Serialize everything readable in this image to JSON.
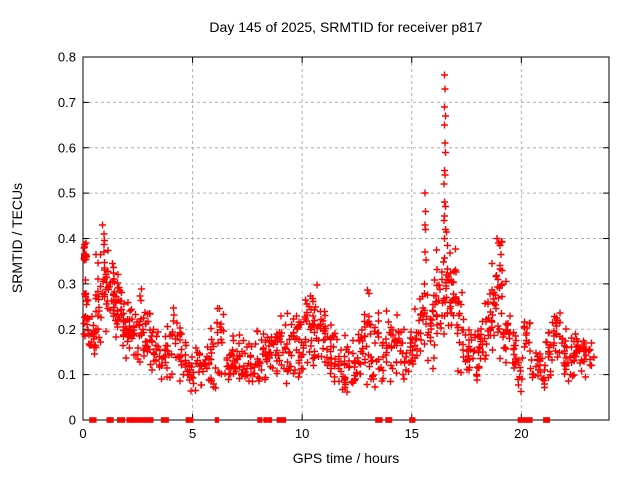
{
  "chart_data": {
    "type": "scatter",
    "title": "Day 145 of 2025, SRMTID for receiver p817",
    "xlabel": "GPS time / hours",
    "ylabel": "SRMTID / TECUs",
    "xlim": [
      0,
      24
    ],
    "ylim": [
      0,
      0.8
    ],
    "x_ticks": [
      0,
      5,
      10,
      15,
      20
    ],
    "x_tick_labels": [
      "0",
      "5",
      "10",
      "15",
      "20"
    ],
    "y_ticks": [
      0,
      0.1,
      0.2,
      0.3,
      0.4,
      0.5,
      0.6,
      0.7,
      0.8
    ],
    "y_tick_labels": [
      "0",
      "0.1",
      "0.2",
      "0.3",
      "0.4",
      "0.5",
      "0.6",
      "0.7",
      "0.8"
    ],
    "grid": true,
    "legend": "none",
    "marker": "plus",
    "colors": {
      "points": "#ff0000",
      "grid": "#b0b0b0",
      "axis": "#000000",
      "background": "#ffffff",
      "text": "#000000"
    },
    "note": "Dense scatter (~1100 pts) read from pixels as envelope bands [x_start,x_end,y_min,y_max,count]; distinct high outliers listed explicitly; zero_runs are x-ranges of points plotted at y=0 on the axis.",
    "density_bands": [
      [
        0.0,
        0.25,
        0.14,
        0.31,
        18
      ],
      [
        0.0,
        0.2,
        0.33,
        0.4,
        14
      ],
      [
        0.25,
        0.55,
        0.1,
        0.28,
        16
      ],
      [
        0.55,
        0.85,
        0.15,
        0.38,
        22
      ],
      [
        0.85,
        1.1,
        0.17,
        0.43,
        20
      ],
      [
        1.1,
        1.45,
        0.2,
        0.38,
        26
      ],
      [
        1.45,
        1.8,
        0.15,
        0.33,
        24
      ],
      [
        1.8,
        2.1,
        0.13,
        0.3,
        22
      ],
      [
        2.1,
        2.45,
        0.12,
        0.27,
        20
      ],
      [
        2.45,
        2.8,
        0.1,
        0.3,
        20
      ],
      [
        2.8,
        3.1,
        0.1,
        0.29,
        18
      ],
      [
        3.1,
        3.45,
        0.09,
        0.22,
        16
      ],
      [
        3.45,
        3.8,
        0.08,
        0.2,
        16
      ],
      [
        3.8,
        4.1,
        0.08,
        0.22,
        14
      ],
      [
        4.1,
        4.45,
        0.08,
        0.28,
        16
      ],
      [
        4.45,
        4.8,
        0.07,
        0.2,
        14
      ],
      [
        4.8,
        5.1,
        0.05,
        0.17,
        12
      ],
      [
        5.1,
        5.45,
        0.05,
        0.18,
        14
      ],
      [
        5.45,
        5.8,
        0.06,
        0.2,
        14
      ],
      [
        5.8,
        6.1,
        0.05,
        0.22,
        14
      ],
      [
        6.1,
        6.45,
        0.06,
        0.28,
        16
      ],
      [
        6.45,
        6.8,
        0.06,
        0.18,
        14
      ],
      [
        6.8,
        7.1,
        0.07,
        0.2,
        14
      ],
      [
        7.1,
        7.45,
        0.07,
        0.2,
        16
      ],
      [
        7.45,
        7.8,
        0.05,
        0.18,
        14
      ],
      [
        7.8,
        8.1,
        0.06,
        0.2,
        14
      ],
      [
        8.1,
        8.45,
        0.06,
        0.22,
        16
      ],
      [
        8.45,
        8.8,
        0.07,
        0.25,
        16
      ],
      [
        8.8,
        9.1,
        0.05,
        0.26,
        16
      ],
      [
        9.1,
        9.45,
        0.06,
        0.26,
        16
      ],
      [
        9.45,
        9.8,
        0.08,
        0.28,
        18
      ],
      [
        9.8,
        10.1,
        0.08,
        0.25,
        18
      ],
      [
        10.1,
        10.45,
        0.1,
        0.31,
        20
      ],
      [
        10.45,
        10.8,
        0.1,
        0.31,
        20
      ],
      [
        10.8,
        11.1,
        0.08,
        0.28,
        18
      ],
      [
        11.1,
        11.45,
        0.08,
        0.25,
        18
      ],
      [
        11.45,
        11.8,
        0.05,
        0.22,
        16
      ],
      [
        11.8,
        12.1,
        0.04,
        0.2,
        16
      ],
      [
        12.1,
        12.45,
        0.05,
        0.18,
        16
      ],
      [
        12.45,
        12.8,
        0.06,
        0.25,
        16
      ],
      [
        12.8,
        13.1,
        0.07,
        0.3,
        18
      ],
      [
        13.1,
        13.45,
        0.05,
        0.25,
        16
      ],
      [
        13.45,
        13.8,
        0.06,
        0.25,
        14
      ],
      [
        13.8,
        14.1,
        0.07,
        0.28,
        16
      ],
      [
        14.1,
        14.45,
        0.08,
        0.26,
        16
      ],
      [
        14.45,
        14.8,
        0.07,
        0.2,
        14
      ],
      [
        14.8,
        15.1,
        0.08,
        0.22,
        14
      ],
      [
        15.1,
        15.45,
        0.1,
        0.3,
        16
      ],
      [
        15.45,
        15.7,
        0.12,
        0.38,
        12
      ],
      [
        15.7,
        16.0,
        0.1,
        0.3,
        16
      ],
      [
        16.0,
        16.35,
        0.12,
        0.38,
        20
      ],
      [
        16.35,
        16.7,
        0.15,
        0.45,
        24
      ],
      [
        16.7,
        17.05,
        0.12,
        0.4,
        22
      ],
      [
        17.05,
        17.4,
        0.1,
        0.3,
        18
      ],
      [
        17.4,
        17.75,
        0.08,
        0.22,
        16
      ],
      [
        17.75,
        18.1,
        0.07,
        0.2,
        16
      ],
      [
        18.1,
        18.45,
        0.1,
        0.28,
        18
      ],
      [
        18.45,
        18.8,
        0.12,
        0.38,
        22
      ],
      [
        18.8,
        19.15,
        0.12,
        0.42,
        24
      ],
      [
        19.15,
        19.5,
        0.1,
        0.32,
        18
      ],
      [
        19.5,
        19.8,
        0.08,
        0.25,
        14
      ],
      [
        19.8,
        20.1,
        0.05,
        0.15,
        10
      ],
      [
        20.1,
        20.45,
        0.1,
        0.24,
        14
      ],
      [
        20.45,
        20.8,
        0.08,
        0.18,
        12
      ],
      [
        20.8,
        21.1,
        0.06,
        0.16,
        12
      ],
      [
        21.1,
        21.45,
        0.08,
        0.22,
        16
      ],
      [
        21.45,
        21.8,
        0.1,
        0.27,
        18
      ],
      [
        21.8,
        22.1,
        0.08,
        0.22,
        16
      ],
      [
        22.1,
        22.45,
        0.08,
        0.2,
        16
      ],
      [
        22.45,
        22.8,
        0.1,
        0.22,
        16
      ],
      [
        22.8,
        23.1,
        0.08,
        0.2,
        14
      ],
      [
        23.1,
        23.35,
        0.1,
        0.18,
        8
      ]
    ],
    "outlier_points": [
      [
        0.9,
        0.43
      ],
      [
        0.95,
        0.41
      ],
      [
        15.58,
        0.3
      ],
      [
        15.6,
        0.37
      ],
      [
        15.6,
        0.43
      ],
      [
        15.62,
        0.46
      ],
      [
        15.63,
        0.42
      ],
      [
        15.6,
        0.5
      ],
      [
        16.5,
        0.76
      ],
      [
        16.52,
        0.73
      ],
      [
        16.5,
        0.69
      ],
      [
        16.53,
        0.67
      ],
      [
        16.5,
        0.65
      ],
      [
        16.52,
        0.61
      ],
      [
        16.55,
        0.59
      ],
      [
        16.5,
        0.55
      ],
      [
        16.52,
        0.54
      ],
      [
        16.48,
        0.52
      ],
      [
        16.5,
        0.48
      ],
      [
        16.53,
        0.47
      ],
      [
        16.5,
        0.45
      ],
      [
        16.47,
        0.44
      ],
      [
        16.55,
        0.42
      ],
      [
        16.5,
        0.4
      ],
      [
        18.9,
        0.4
      ],
      [
        18.95,
        0.39
      ]
    ],
    "zero_runs": [
      [
        0.35,
        0.55
      ],
      [
        1.14,
        1.2
      ],
      [
        1.28,
        1.33
      ],
      [
        1.62,
        1.85
      ],
      [
        2.05,
        2.2
      ],
      [
        2.3,
        2.48
      ],
      [
        2.6,
        3.15
      ],
      [
        3.62,
        3.85
      ],
      [
        4.75,
        4.97
      ],
      [
        6.08,
        6.14
      ],
      [
        8.02,
        8.12
      ],
      [
        8.3,
        8.36
      ],
      [
        8.5,
        8.56
      ],
      [
        8.9,
        9.2
      ],
      [
        13.4,
        13.6
      ],
      [
        13.86,
        13.92
      ],
      [
        13.98,
        14.04
      ],
      [
        14.95,
        15.1
      ],
      [
        19.9,
        20.45
      ],
      [
        21.06,
        21.12
      ],
      [
        21.18,
        21.24
      ]
    ]
  }
}
